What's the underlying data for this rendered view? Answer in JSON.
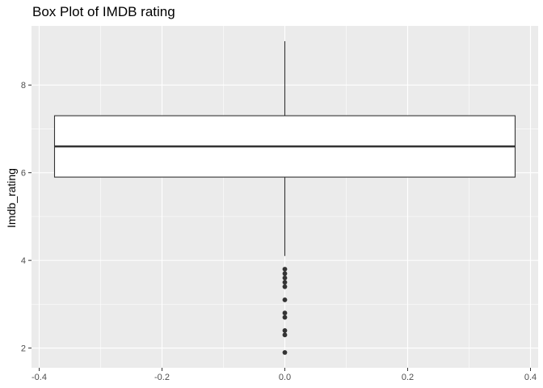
{
  "chart_data": {
    "type": "boxplot",
    "title": "Box Plot of IMDB rating",
    "xlabel": "",
    "ylabel": "Imdb_rating",
    "xlim": [
      -0.4125,
      0.4125
    ],
    "ylim": [
      1.55,
      9.35
    ],
    "x_ticks": [
      -0.4,
      -0.2,
      0.0,
      0.2,
      0.4
    ],
    "x_tick_labels": [
      "-0.4",
      "-0.2",
      "0.0",
      "0.2",
      "0.4"
    ],
    "y_ticks": [
      2,
      4,
      6,
      8
    ],
    "y_tick_labels": [
      "2",
      "4",
      "6",
      "8"
    ],
    "grid": true,
    "box": {
      "x_center": 0.0,
      "x_min": -0.375,
      "x_max": 0.375,
      "whisker_low": 4.1,
      "q1": 5.9,
      "median": 6.6,
      "q3": 7.3,
      "whisker_high": 9.0
    },
    "outliers": [
      3.8,
      3.7,
      3.6,
      3.5,
      3.4,
      3.1,
      2.8,
      2.7,
      2.4,
      2.3,
      1.9
    ],
    "colors": {
      "panel_bg": "#ebebeb",
      "grid_major": "#ffffff",
      "box_fill": "#ffffff",
      "box_stroke": "#333333",
      "point": "#333333"
    }
  }
}
